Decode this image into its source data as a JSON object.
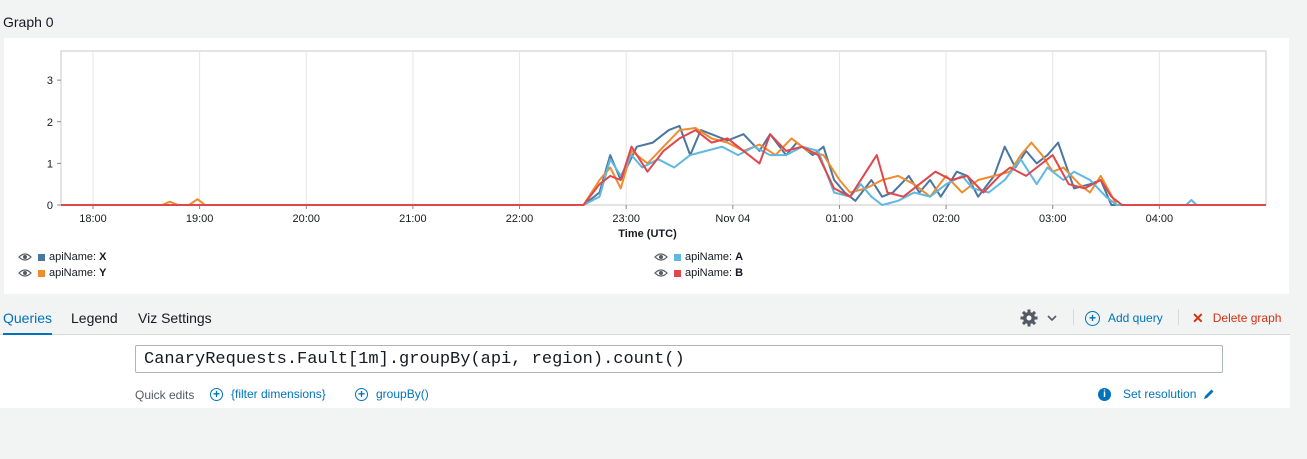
{
  "graph": {
    "title": "Graph 0"
  },
  "chart_data": {
    "type": "line",
    "xlabel": "Time (UTC)",
    "ylabel": "",
    "ylim": [
      0,
      3.7
    ],
    "yticks": [
      0,
      1,
      2,
      3
    ],
    "xticks": [
      "18:00",
      "19:00",
      "20:00",
      "21:00",
      "22:00",
      "23:00",
      "Nov 04",
      "01:00",
      "02:00",
      "03:00",
      "04:00"
    ],
    "grid": true,
    "legend_position": "bottom",
    "x_range_hours": [
      17.7,
      29.0
    ],
    "series": [
      {
        "name": "apiName: X",
        "color": "#4b76a0",
        "points": [
          [
            17.7,
            0
          ],
          [
            22.6,
            0
          ],
          [
            22.75,
            0.3
          ],
          [
            22.85,
            1.2
          ],
          [
            22.95,
            0.6
          ],
          [
            23.1,
            1.4
          ],
          [
            23.25,
            1.5
          ],
          [
            23.4,
            1.8
          ],
          [
            23.5,
            1.9
          ],
          [
            23.6,
            1.2
          ],
          [
            23.7,
            1.8
          ],
          [
            23.8,
            1.7
          ],
          [
            23.95,
            1.55
          ],
          [
            24.1,
            1.7
          ],
          [
            24.25,
            1.3
          ],
          [
            24.35,
            1.7
          ],
          [
            24.5,
            1.2
          ],
          [
            24.6,
            1.5
          ],
          [
            24.75,
            1.2
          ],
          [
            24.85,
            1.4
          ],
          [
            24.95,
            0.6
          ],
          [
            25.05,
            0.3
          ],
          [
            25.15,
            0.1
          ],
          [
            25.3,
            0.6
          ],
          [
            25.4,
            0.2
          ],
          [
            25.5,
            0.3
          ],
          [
            25.65,
            0.7
          ],
          [
            25.75,
            0.3
          ],
          [
            25.85,
            0.6
          ],
          [
            25.95,
            0.2
          ],
          [
            26.1,
            0.8
          ],
          [
            26.2,
            0.7
          ],
          [
            26.3,
            0.2
          ],
          [
            26.45,
            0.7
          ],
          [
            26.55,
            1.4
          ],
          [
            26.65,
            0.9
          ],
          [
            26.75,
            1.3
          ],
          [
            26.85,
            1.0
          ],
          [
            26.95,
            1.2
          ],
          [
            27.05,
            1.5
          ],
          [
            27.2,
            0.4
          ],
          [
            27.35,
            0.5
          ],
          [
            27.45,
            0.6
          ],
          [
            27.55,
            0
          ],
          [
            29.0,
            0
          ]
        ]
      },
      {
        "name": "apiName: Y",
        "color": "#ef8c2d",
        "points": [
          [
            17.7,
            0
          ],
          [
            18.65,
            0
          ],
          [
            18.72,
            0.08
          ],
          [
            18.8,
            0
          ],
          [
            18.9,
            0
          ],
          [
            18.98,
            0.14
          ],
          [
            19.05,
            0
          ],
          [
            22.6,
            0
          ],
          [
            22.75,
            0.6
          ],
          [
            22.85,
            0.9
          ],
          [
            22.95,
            0.4
          ],
          [
            23.05,
            1.3
          ],
          [
            23.2,
            1.0
          ],
          [
            23.35,
            1.4
          ],
          [
            23.5,
            1.8
          ],
          [
            23.65,
            1.85
          ],
          [
            23.8,
            1.6
          ],
          [
            23.95,
            1.5
          ],
          [
            24.1,
            1.3
          ],
          [
            24.25,
            1.45
          ],
          [
            24.4,
            1.2
          ],
          [
            24.55,
            1.6
          ],
          [
            24.7,
            1.3
          ],
          [
            24.85,
            1.2
          ],
          [
            25.0,
            0.6
          ],
          [
            25.1,
            0.3
          ],
          [
            25.25,
            0.4
          ],
          [
            25.4,
            0.6
          ],
          [
            25.55,
            0.7
          ],
          [
            25.7,
            0.5
          ],
          [
            25.85,
            0.2
          ],
          [
            26.0,
            0.7
          ],
          [
            26.15,
            0.3
          ],
          [
            26.3,
            0.6
          ],
          [
            26.45,
            0.7
          ],
          [
            26.6,
            0.8
          ],
          [
            26.7,
            1.2
          ],
          [
            26.8,
            1.5
          ],
          [
            26.9,
            1.2
          ],
          [
            27.0,
            0.8
          ],
          [
            27.1,
            0.9
          ],
          [
            27.25,
            0.5
          ],
          [
            27.35,
            0.3
          ],
          [
            27.45,
            0.7
          ],
          [
            27.6,
            0
          ],
          [
            29.0,
            0
          ]
        ]
      },
      {
        "name": "apiName: A",
        "color": "#5fb8e0",
        "points": [
          [
            17.7,
            0
          ],
          [
            22.6,
            0
          ],
          [
            22.75,
            0.2
          ],
          [
            22.85,
            1.1
          ],
          [
            22.95,
            0.7
          ],
          [
            23.05,
            1.2
          ],
          [
            23.15,
            0.9
          ],
          [
            23.3,
            1.1
          ],
          [
            23.45,
            0.9
          ],
          [
            23.6,
            1.2
          ],
          [
            23.75,
            1.3
          ],
          [
            23.9,
            1.4
          ],
          [
            24.05,
            1.2
          ],
          [
            24.2,
            1.4
          ],
          [
            24.35,
            1.2
          ],
          [
            24.5,
            1.2
          ],
          [
            24.65,
            1.4
          ],
          [
            24.8,
            1.3
          ],
          [
            24.95,
            0.3
          ],
          [
            25.1,
            0.2
          ],
          [
            25.2,
            0.5
          ],
          [
            25.3,
            0.2
          ],
          [
            25.4,
            0
          ],
          [
            25.55,
            0.1
          ],
          [
            25.7,
            0.3
          ],
          [
            25.85,
            0.2
          ],
          [
            26.0,
            0.5
          ],
          [
            26.15,
            0.7
          ],
          [
            26.25,
            0.4
          ],
          [
            26.4,
            0.3
          ],
          [
            26.55,
            0.6
          ],
          [
            26.7,
            1.1
          ],
          [
            26.85,
            0.5
          ],
          [
            26.95,
            0.9
          ],
          [
            27.1,
            0.6
          ],
          [
            27.2,
            0.8
          ],
          [
            27.35,
            0.6
          ],
          [
            27.5,
            0.2
          ],
          [
            27.6,
            0
          ],
          [
            29.0,
            0
          ],
          [
            28.25,
            0
          ],
          [
            28.3,
            0.12
          ],
          [
            28.35,
            0
          ]
        ]
      },
      {
        "name": "apiName: B",
        "color": "#e0474c",
        "points": [
          [
            17.7,
            0
          ],
          [
            22.6,
            0
          ],
          [
            22.75,
            0.5
          ],
          [
            22.85,
            0.7
          ],
          [
            22.95,
            0.6
          ],
          [
            23.05,
            1.4
          ],
          [
            23.2,
            0.8
          ],
          [
            23.35,
            1.3
          ],
          [
            23.5,
            1.6
          ],
          [
            23.65,
            1.8
          ],
          [
            23.8,
            1.5
          ],
          [
            23.95,
            1.6
          ],
          [
            24.1,
            1.3
          ],
          [
            24.25,
            1.0
          ],
          [
            24.35,
            1.7
          ],
          [
            24.5,
            1.3
          ],
          [
            24.65,
            1.4
          ],
          [
            24.8,
            1.2
          ],
          [
            24.95,
            0.4
          ],
          [
            25.1,
            0.2
          ],
          [
            25.25,
            0.8
          ],
          [
            25.35,
            1.2
          ],
          [
            25.45,
            0.3
          ],
          [
            25.6,
            0.2
          ],
          [
            25.75,
            0.5
          ],
          [
            25.9,
            0.8
          ],
          [
            26.05,
            0.6
          ],
          [
            26.2,
            0.7
          ],
          [
            26.35,
            0.3
          ],
          [
            26.5,
            0.7
          ],
          [
            26.6,
            0.9
          ],
          [
            26.75,
            0.7
          ],
          [
            26.85,
            0.9
          ],
          [
            27.0,
            1.2
          ],
          [
            27.15,
            0.5
          ],
          [
            27.3,
            0.4
          ],
          [
            27.45,
            0.6
          ],
          [
            27.55,
            0.2
          ],
          [
            27.65,
            0
          ],
          [
            29.0,
            0
          ]
        ]
      }
    ]
  },
  "legend": {
    "items": [
      {
        "key": "apiName:",
        "value": "X",
        "color": "#4b76a0"
      },
      {
        "key": "apiName:",
        "value": "Y",
        "color": "#ef8c2d"
      },
      {
        "key": "apiName:",
        "value": "A",
        "color": "#5fb8e0"
      },
      {
        "key": "apiName:",
        "value": "B",
        "color": "#e0474c"
      }
    ]
  },
  "tabs": [
    {
      "label": "Queries",
      "active": true
    },
    {
      "label": "Legend",
      "active": false
    },
    {
      "label": "Viz Settings",
      "active": false
    }
  ],
  "toolbar": {
    "add_query": "Add query",
    "delete_graph": "Delete graph"
  },
  "query": {
    "text": "CanaryRequests.Fault[1m].groupBy(api, region).count()"
  },
  "quick_edits": {
    "label": "Quick edits",
    "filter": "{filter dimensions}",
    "groupby": "groupBy()",
    "set_resolution": "Set resolution"
  },
  "colors": {
    "accent": "#0073bb",
    "danger": "#d13212"
  }
}
